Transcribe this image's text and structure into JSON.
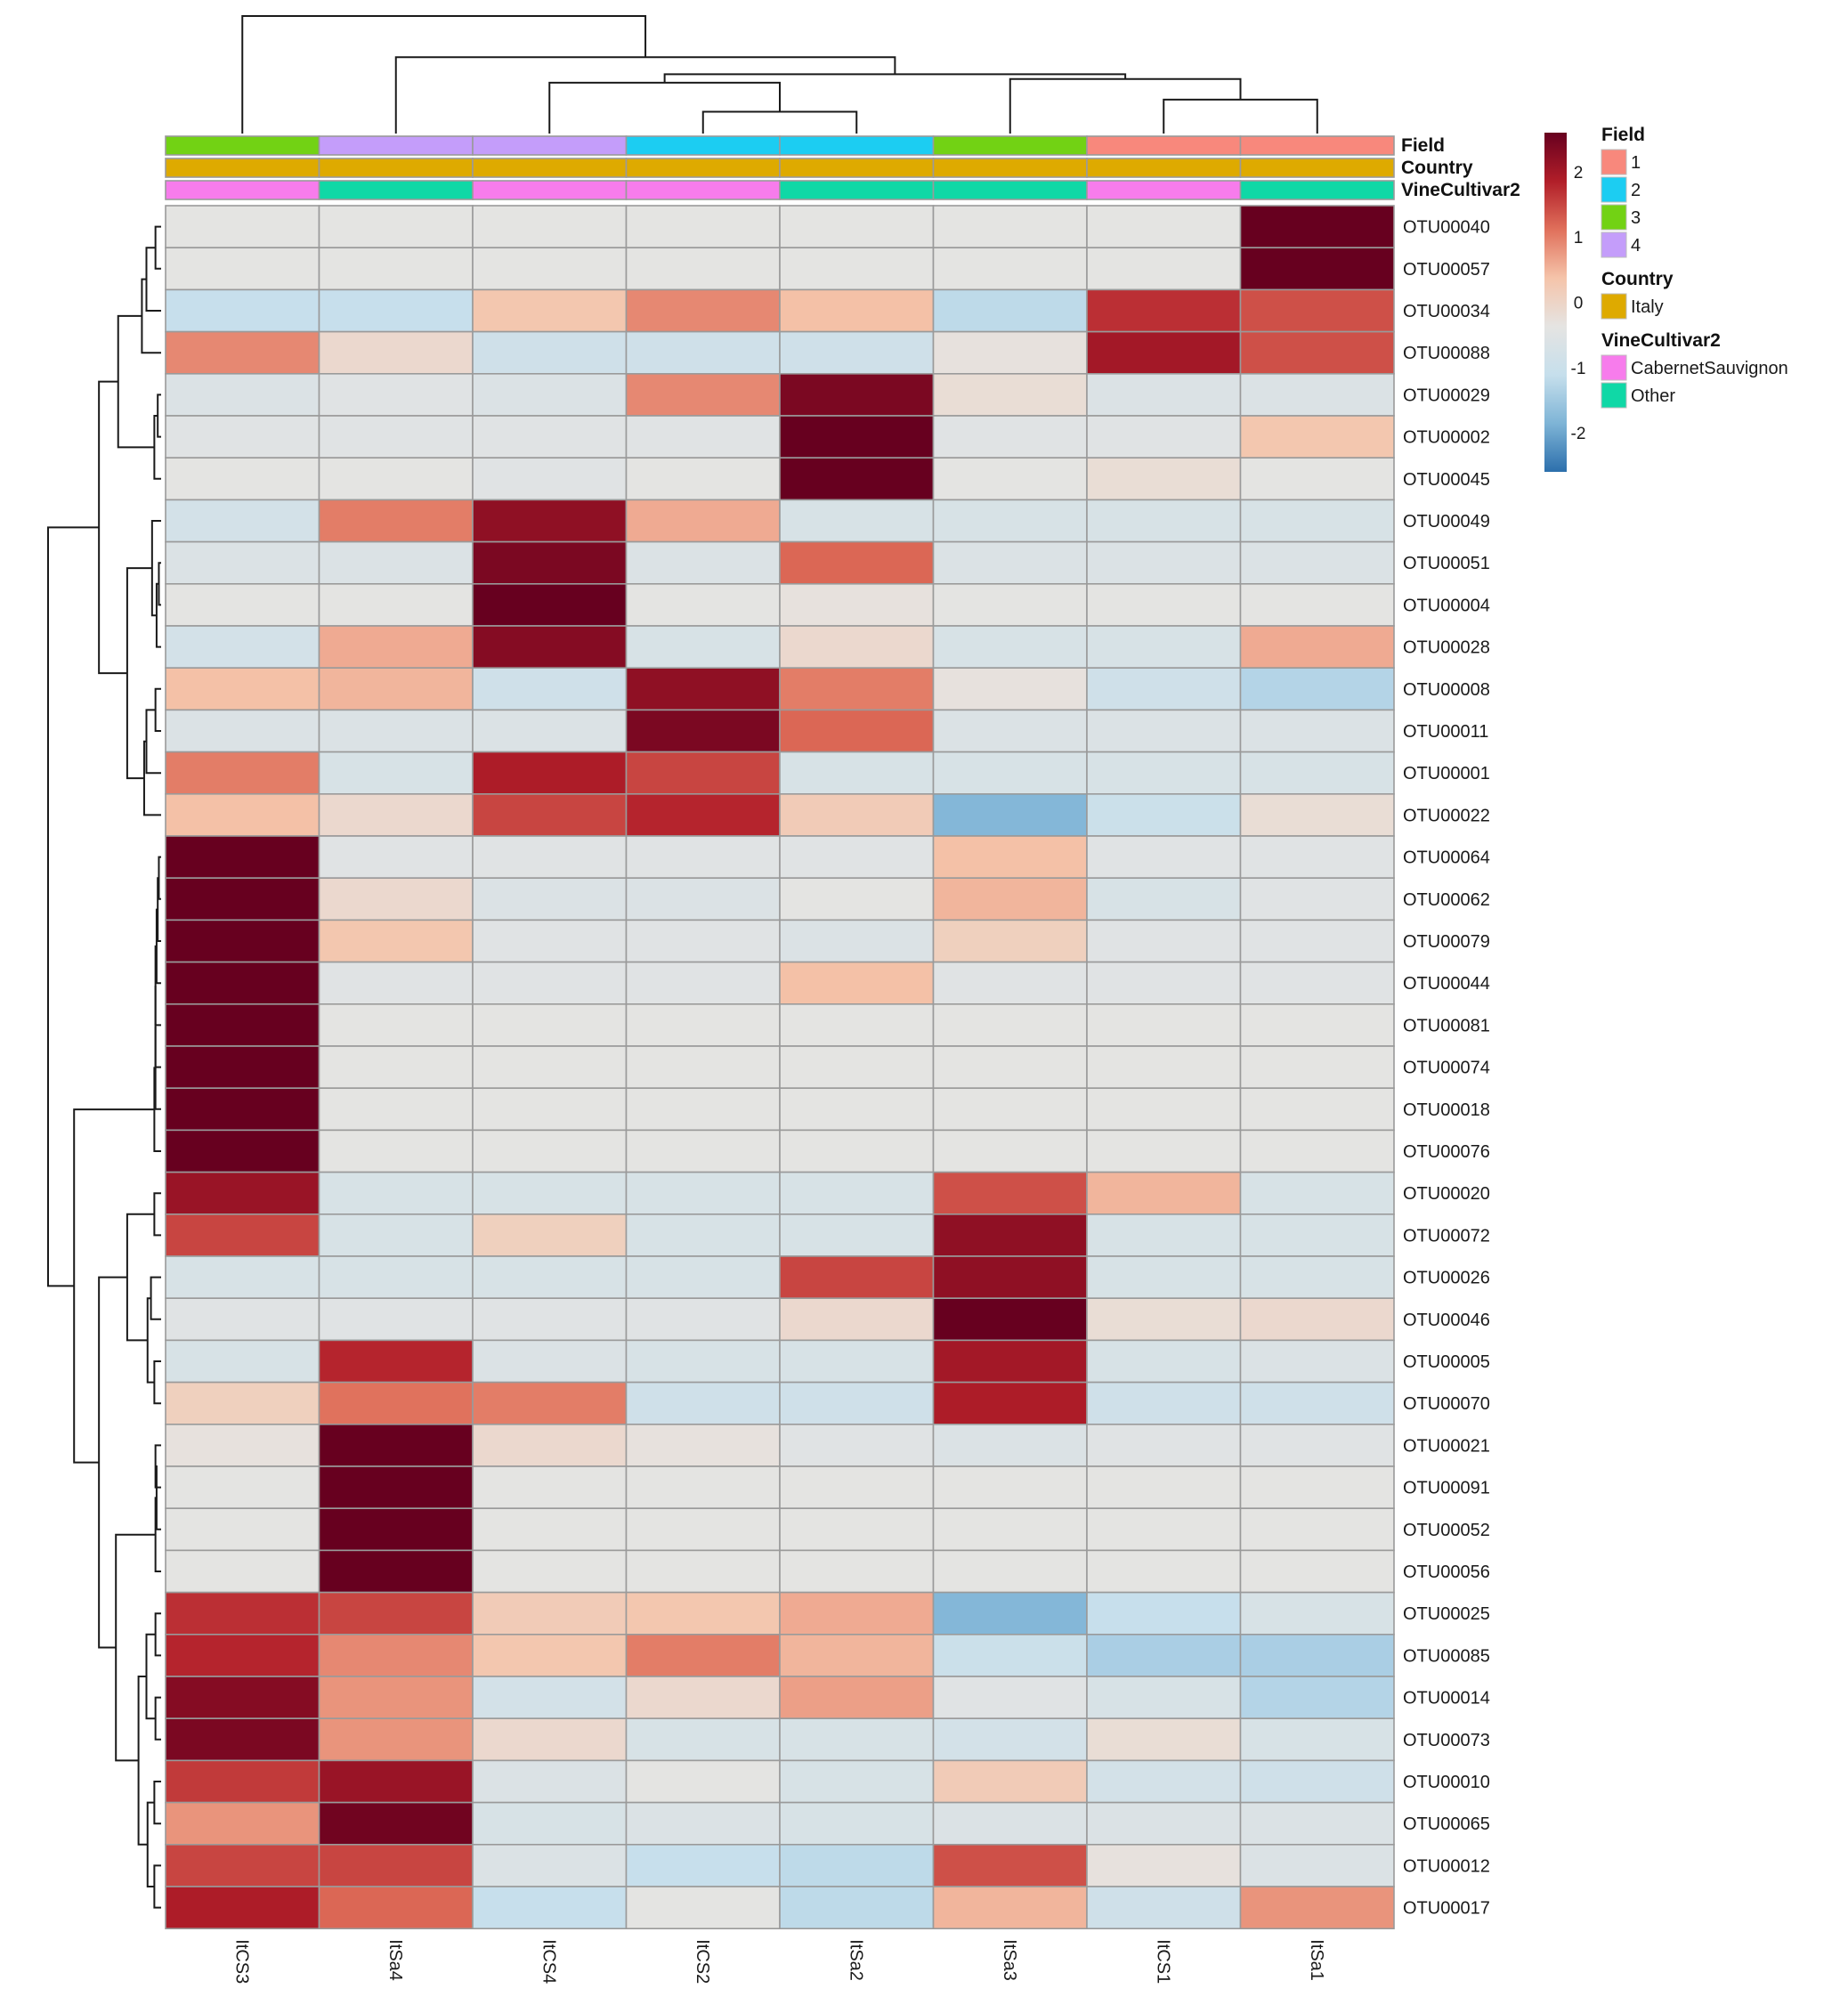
{
  "chart_data": {
    "type": "heatmap",
    "title": "",
    "columns": [
      "ItCS3",
      "ItSa4",
      "ItCS4",
      "ItCS2",
      "ItSa2",
      "ItSa3",
      "ItCS1",
      "ItSa1"
    ],
    "rows": [
      "OTU00040",
      "OTU00057",
      "OTU00034",
      "OTU00088",
      "OTU00029",
      "OTU00002",
      "OTU00045",
      "OTU00049",
      "OTU00051",
      "OTU00004",
      "OTU00028",
      "OTU00008",
      "OTU00011",
      "OTU00001",
      "OTU00022",
      "OTU00064",
      "OTU00062",
      "OTU00079",
      "OTU00044",
      "OTU00081",
      "OTU00074",
      "OTU00018",
      "OTU00076",
      "OTU00020",
      "OTU00072",
      "OTU00026",
      "OTU00046",
      "OTU00005",
      "OTU00070",
      "OTU00021",
      "OTU00091",
      "OTU00052",
      "OTU00056",
      "OTU00025",
      "OTU00085",
      "OTU00014",
      "OTU00073",
      "OTU00010",
      "OTU00065",
      "OTU00012",
      "OTU00017"
    ],
    "values": [
      [
        -0.4,
        -0.4,
        -0.4,
        -0.4,
        -0.4,
        -0.4,
        -0.4,
        2.6
      ],
      [
        -0.4,
        -0.4,
        -0.4,
        -0.4,
        -0.4,
        -0.4,
        -0.4,
        2.6
      ],
      [
        -1.1,
        -1.1,
        0.3,
        0.9,
        0.4,
        -1.2,
        1.7,
        1.4
      ],
      [
        0.9,
        -0.1,
        -0.9,
        -0.9,
        -0.9,
        -0.3,
        2.0,
        1.4
      ],
      [
        -0.6,
        -0.5,
        -0.6,
        0.9,
        2.4,
        -0.2,
        -0.6,
        -0.6
      ],
      [
        -0.5,
        -0.5,
        -0.5,
        -0.5,
        2.6,
        -0.5,
        -0.5,
        0.3
      ],
      [
        -0.4,
        -0.4,
        -0.5,
        -0.4,
        2.6,
        -0.4,
        -0.2,
        -0.4
      ],
      [
        -0.8,
        1.0,
        2.2,
        0.6,
        -0.7,
        -0.7,
        -0.7,
        -0.7
      ],
      [
        -0.6,
        -0.6,
        2.4,
        -0.6,
        1.2,
        -0.6,
        -0.6,
        -0.6
      ],
      [
        -0.4,
        -0.4,
        2.6,
        -0.4,
        -0.3,
        -0.4,
        -0.4,
        -0.4
      ],
      [
        -0.8,
        0.6,
        2.3,
        -0.7,
        -0.1,
        -0.7,
        -0.7,
        0.6
      ],
      [
        0.4,
        0.5,
        -0.9,
        2.2,
        1.0,
        -0.3,
        -0.9,
        -1.3
      ],
      [
        -0.6,
        -0.6,
        -0.6,
        2.4,
        1.2,
        -0.6,
        -0.6,
        -0.6
      ],
      [
        1.0,
        -0.7,
        1.9,
        1.5,
        -0.7,
        -0.7,
        -0.7,
        -0.7
      ],
      [
        0.4,
        -0.1,
        1.5,
        1.8,
        0.2,
        -1.8,
        -1.0,
        -0.2
      ],
      [
        2.6,
        -0.5,
        -0.5,
        -0.5,
        -0.5,
        0.4,
        -0.5,
        -0.5
      ],
      [
        2.6,
        -0.1,
        -0.6,
        -0.6,
        -0.4,
        0.5,
        -0.7,
        -0.5
      ],
      [
        2.6,
        0.3,
        -0.5,
        -0.5,
        -0.6,
        0.1,
        -0.5,
        -0.5
      ],
      [
        2.6,
        -0.5,
        -0.5,
        -0.5,
        0.4,
        -0.5,
        -0.5,
        -0.5
      ],
      [
        2.6,
        -0.4,
        -0.4,
        -0.4,
        -0.4,
        -0.4,
        -0.4,
        -0.4
      ],
      [
        2.6,
        -0.4,
        -0.4,
        -0.4,
        -0.4,
        -0.4,
        -0.4,
        -0.4
      ],
      [
        2.6,
        -0.4,
        -0.4,
        -0.4,
        -0.4,
        -0.4,
        -0.4,
        -0.4
      ],
      [
        2.6,
        -0.4,
        -0.4,
        -0.4,
        -0.4,
        -0.4,
        -0.4,
        -0.4
      ],
      [
        2.1,
        -0.7,
        -0.7,
        -0.7,
        -0.7,
        1.4,
        0.5,
        -0.7
      ],
      [
        1.5,
        -0.7,
        0.1,
        -0.7,
        -0.7,
        2.2,
        -0.7,
        -0.7
      ],
      [
        -0.7,
        -0.7,
        -0.7,
        -0.7,
        1.5,
        2.2,
        -0.7,
        -0.7
      ],
      [
        -0.5,
        -0.5,
        -0.5,
        -0.5,
        -0.1,
        2.6,
        -0.2,
        -0.1
      ],
      [
        -0.7,
        1.8,
        -0.6,
        -0.7,
        -0.7,
        2.0,
        -0.7,
        -0.6
      ],
      [
        0.1,
        1.1,
        1.0,
        -0.9,
        -0.9,
        1.9,
        -0.9,
        -0.9
      ],
      [
        -0.3,
        2.6,
        -0.1,
        -0.3,
        -0.5,
        -0.6,
        -0.5,
        -0.5
      ],
      [
        -0.4,
        2.6,
        -0.4,
        -0.4,
        -0.4,
        -0.4,
        -0.4,
        -0.4
      ],
      [
        -0.4,
        2.6,
        -0.4,
        -0.4,
        -0.4,
        -0.4,
        -0.4,
        -0.4
      ],
      [
        -0.4,
        2.6,
        -0.4,
        -0.4,
        -0.4,
        -0.4,
        -0.4,
        -0.4
      ],
      [
        1.7,
        1.5,
        0.2,
        0.3,
        0.6,
        -1.8,
        -1.1,
        -0.7
      ],
      [
        1.8,
        0.9,
        0.3,
        1.0,
        0.5,
        -1.0,
        -1.4,
        -1.4
      ],
      [
        2.3,
        0.8,
        -0.8,
        -0.1,
        0.7,
        -0.5,
        -0.7,
        -1.3
      ],
      [
        2.4,
        0.8,
        -0.1,
        -0.7,
        -0.7,
        -0.8,
        -0.2,
        -0.7
      ],
      [
        1.6,
        2.1,
        -0.6,
        -0.4,
        -0.7,
        0.2,
        -0.8,
        -0.9
      ],
      [
        0.8,
        2.5,
        -0.7,
        -0.6,
        -0.7,
        -0.6,
        -0.6,
        -0.6
      ],
      [
        1.5,
        1.5,
        -0.6,
        -1.1,
        -1.2,
        1.4,
        -0.3,
        -0.6
      ],
      [
        1.9,
        1.2,
        -1.1,
        -0.4,
        -1.2,
        0.5,
        -0.9,
        0.8
      ]
    ],
    "color_scale": {
      "min": -2.6,
      "max": 2.6,
      "ticks": [
        2,
        1,
        0,
        -1,
        -2
      ],
      "colors": [
        "#2c6fac",
        "#7eb4d6",
        "#c6dfec",
        "#e5e4e2",
        "#f5c4aa",
        "#e0705b",
        "#b11e29",
        "#67001f"
      ]
    },
    "annotations": {
      "tracks": [
        "Field",
        "Country",
        "VineCultivar2"
      ],
      "Field": [
        "3",
        "4",
        "4",
        "2",
        "2",
        "3",
        "1",
        "1"
      ],
      "Country": [
        "Italy",
        "Italy",
        "Italy",
        "Italy",
        "Italy",
        "Italy",
        "Italy",
        "Italy"
      ],
      "VineCultivar2": [
        "CabernetSauvignon",
        "Other",
        "CabernetSauvignon",
        "CabernetSauvignon",
        "Other",
        "Other",
        "CabernetSauvignon",
        "Other"
      ]
    },
    "legend": {
      "position": "right",
      "groups": [
        {
          "title": "Field",
          "items": [
            {
              "label": "1",
              "color": "#f8887c"
            },
            {
              "label": "2",
              "color": "#1ccdf2"
            },
            {
              "label": "3",
              "color": "#72d214"
            },
            {
              "label": "4",
              "color": "#c49dfa"
            }
          ]
        },
        {
          "title": "Country",
          "items": [
            {
              "label": "Italy",
              "color": "#deaa00"
            }
          ]
        },
        {
          "title": "VineCultivar2",
          "items": [
            {
              "label": "CabernetSauvignon",
              "color": "#f77cec"
            },
            {
              "label": "Other",
              "color": "#10d8a6"
            }
          ]
        }
      ]
    },
    "col_dendrogram": [
      [
        4,
        3,
        0.18
      ],
      [
        6,
        7,
        0.28
      ],
      [
        2,
        8,
        0.42
      ],
      [
        5,
        9,
        0.45
      ],
      [
        10,
        11,
        0.49
      ],
      [
        1,
        12,
        0.63
      ],
      [
        0,
        13,
        0.97
      ]
    ],
    "row_dendrogram": [
      [
        0,
        1,
        0.05
      ],
      [
        41,
        2,
        0.13
      ],
      [
        42,
        3,
        0.17
      ],
      [
        4,
        5,
        0.03
      ],
      [
        44,
        6,
        0.06
      ],
      [
        43,
        45,
        0.38
      ],
      [
        8,
        9,
        0.02
      ],
      [
        47,
        10,
        0.04
      ],
      [
        7,
        48,
        0.08
      ],
      [
        11,
        12,
        0.05
      ],
      [
        50,
        13,
        0.13
      ],
      [
        51,
        14,
        0.15
      ],
      [
        49,
        52,
        0.3
      ],
      [
        46,
        53,
        0.55
      ],
      [
        15,
        16,
        0.02
      ],
      [
        55,
        17,
        0.03
      ],
      [
        56,
        18,
        0.04
      ],
      [
        57,
        19,
        0.05
      ],
      [
        58,
        20,
        0.05
      ],
      [
        59,
        21,
        0.05
      ],
      [
        60,
        22,
        0.06
      ],
      [
        23,
        24,
        0.06
      ],
      [
        25,
        26,
        0.09
      ],
      [
        27,
        28,
        0.06
      ],
      [
        63,
        64,
        0.12
      ],
      [
        62,
        65,
        0.3
      ],
      [
        29,
        30,
        0.05
      ],
      [
        67,
        31,
        0.04
      ],
      [
        68,
        32,
        0.05
      ],
      [
        33,
        34,
        0.05
      ],
      [
        35,
        36,
        0.05
      ],
      [
        70,
        71,
        0.13
      ],
      [
        37,
        38,
        0.06
      ],
      [
        39,
        40,
        0.06
      ],
      [
        73,
        74,
        0.12
      ],
      [
        72,
        75,
        0.2
      ],
      [
        69,
        76,
        0.4
      ],
      [
        66,
        77,
        0.55
      ],
      [
        61,
        78,
        0.77
      ],
      [
        54,
        79,
        1.0
      ]
    ]
  }
}
